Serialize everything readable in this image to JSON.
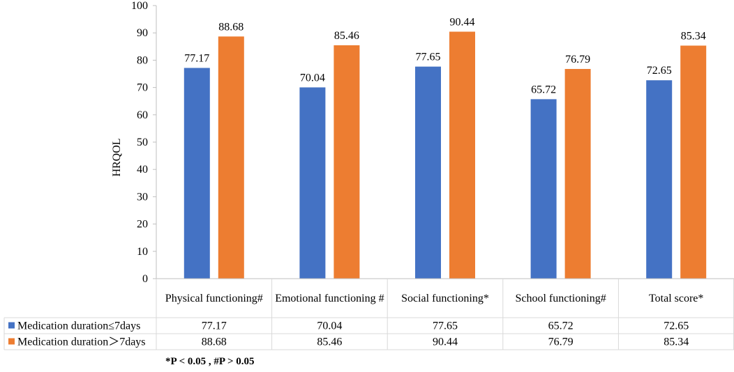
{
  "chart_data": {
    "type": "bar",
    "title": "",
    "xlabel": "",
    "ylabel": "HRQOL",
    "ylim": [
      0,
      100
    ],
    "y_ticks": [
      "0",
      "10",
      "20",
      "30",
      "40",
      "50",
      "60",
      "70",
      "80",
      "90",
      "100"
    ],
    "categories": [
      "Physical functioning#",
      "Emotional functioning #",
      "Social functioning*",
      "School functioning#",
      "Total score*"
    ],
    "series": [
      {
        "name": "Medication duration≤7days",
        "color": "#4472C4",
        "values": [
          77.17,
          70.04,
          77.65,
          65.72,
          72.65
        ],
        "labels": [
          "77.17",
          "70.04",
          "77.65",
          "65.72",
          "72.65"
        ]
      },
      {
        "name": "Medication duration＞7days",
        "color": "#ED7D31",
        "values": [
          88.68,
          85.46,
          90.44,
          76.79,
          85.34
        ],
        "labels": [
          "88.68",
          "85.46",
          "90.44",
          "76.79",
          "85.34"
        ]
      }
    ],
    "legend": "data-table",
    "grid": false
  },
  "footnote": "*P < 0.05 , #P > 0.05"
}
